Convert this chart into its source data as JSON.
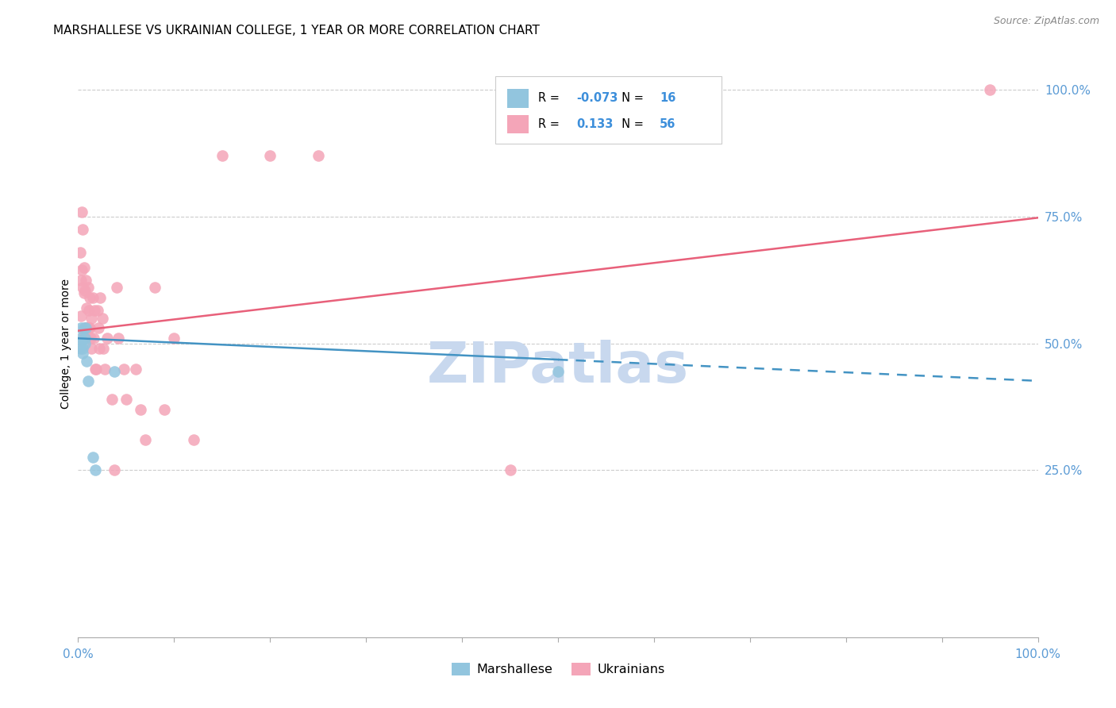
{
  "title": "MARSHALLESE VS UKRAINIAN COLLEGE, 1 YEAR OR MORE CORRELATION CHART",
  "source": "Source: ZipAtlas.com",
  "ylabel": "College, 1 year or more",
  "ylabel_right_ticks": [
    "100.0%",
    "75.0%",
    "50.0%",
    "25.0%"
  ],
  "ylabel_right_vals": [
    1.0,
    0.75,
    0.5,
    0.25
  ],
  "watermark": "ZIPatlas",
  "legend_blue_r": "-0.073",
  "legend_blue_n": "16",
  "legend_pink_r": "0.133",
  "legend_pink_n": "56",
  "blue_scatter_x": [
    0.002,
    0.003,
    0.003,
    0.004,
    0.005,
    0.005,
    0.006,
    0.007,
    0.007,
    0.008,
    0.009,
    0.01,
    0.015,
    0.018,
    0.038,
    0.5
  ],
  "blue_scatter_y": [
    0.49,
    0.51,
    0.53,
    0.505,
    0.49,
    0.48,
    0.53,
    0.51,
    0.5,
    0.53,
    0.465,
    0.425,
    0.275,
    0.25,
    0.445,
    0.445
  ],
  "pink_scatter_x": [
    0.002,
    0.003,
    0.003,
    0.004,
    0.004,
    0.005,
    0.005,
    0.006,
    0.006,
    0.006,
    0.007,
    0.007,
    0.008,
    0.008,
    0.009,
    0.009,
    0.01,
    0.01,
    0.011,
    0.011,
    0.012,
    0.012,
    0.013,
    0.014,
    0.014,
    0.015,
    0.016,
    0.017,
    0.018,
    0.019,
    0.02,
    0.021,
    0.022,
    0.023,
    0.025,
    0.026,
    0.028,
    0.03,
    0.035,
    0.038,
    0.04,
    0.042,
    0.048,
    0.05,
    0.06,
    0.065,
    0.07,
    0.08,
    0.09,
    0.1,
    0.12,
    0.15,
    0.2,
    0.25,
    0.45,
    0.95
  ],
  "pink_scatter_y": [
    0.68,
    0.625,
    0.555,
    0.76,
    0.645,
    0.725,
    0.61,
    0.52,
    0.6,
    0.65,
    0.53,
    0.605,
    0.625,
    0.53,
    0.57,
    0.53,
    0.61,
    0.53,
    0.565,
    0.53,
    0.59,
    0.53,
    0.51,
    0.55,
    0.49,
    0.59,
    0.51,
    0.565,
    0.45,
    0.45,
    0.565,
    0.53,
    0.49,
    0.59,
    0.55,
    0.49,
    0.45,
    0.51,
    0.39,
    0.25,
    0.61,
    0.51,
    0.45,
    0.39,
    0.45,
    0.37,
    0.31,
    0.61,
    0.37,
    0.51,
    0.31,
    0.87,
    0.87,
    0.87,
    0.25,
    1.0
  ],
  "blue_line_solid_x0": 0.0,
  "blue_line_solid_x1": 0.5,
  "blue_line_y0": 0.51,
  "blue_line_y1": 0.468,
  "blue_line_dash_x1": 1.0,
  "blue_line_dash_y1": 0.426,
  "pink_line_x0": 0.0,
  "pink_line_x1": 1.0,
  "pink_line_y0": 0.525,
  "pink_line_y1": 0.748,
  "blue_color": "#92c5de",
  "pink_color": "#f4a5b8",
  "blue_line_color": "#4393c3",
  "pink_line_color": "#e8607a",
  "background_color": "#ffffff",
  "grid_color": "#cccccc",
  "title_fontsize": 11,
  "source_fontsize": 9,
  "watermark_color": "#c8d8ee",
  "watermark_fontsize": 52,
  "xmin": 0.0,
  "xmax": 1.0,
  "ymin": -0.08,
  "ymax": 1.08
}
